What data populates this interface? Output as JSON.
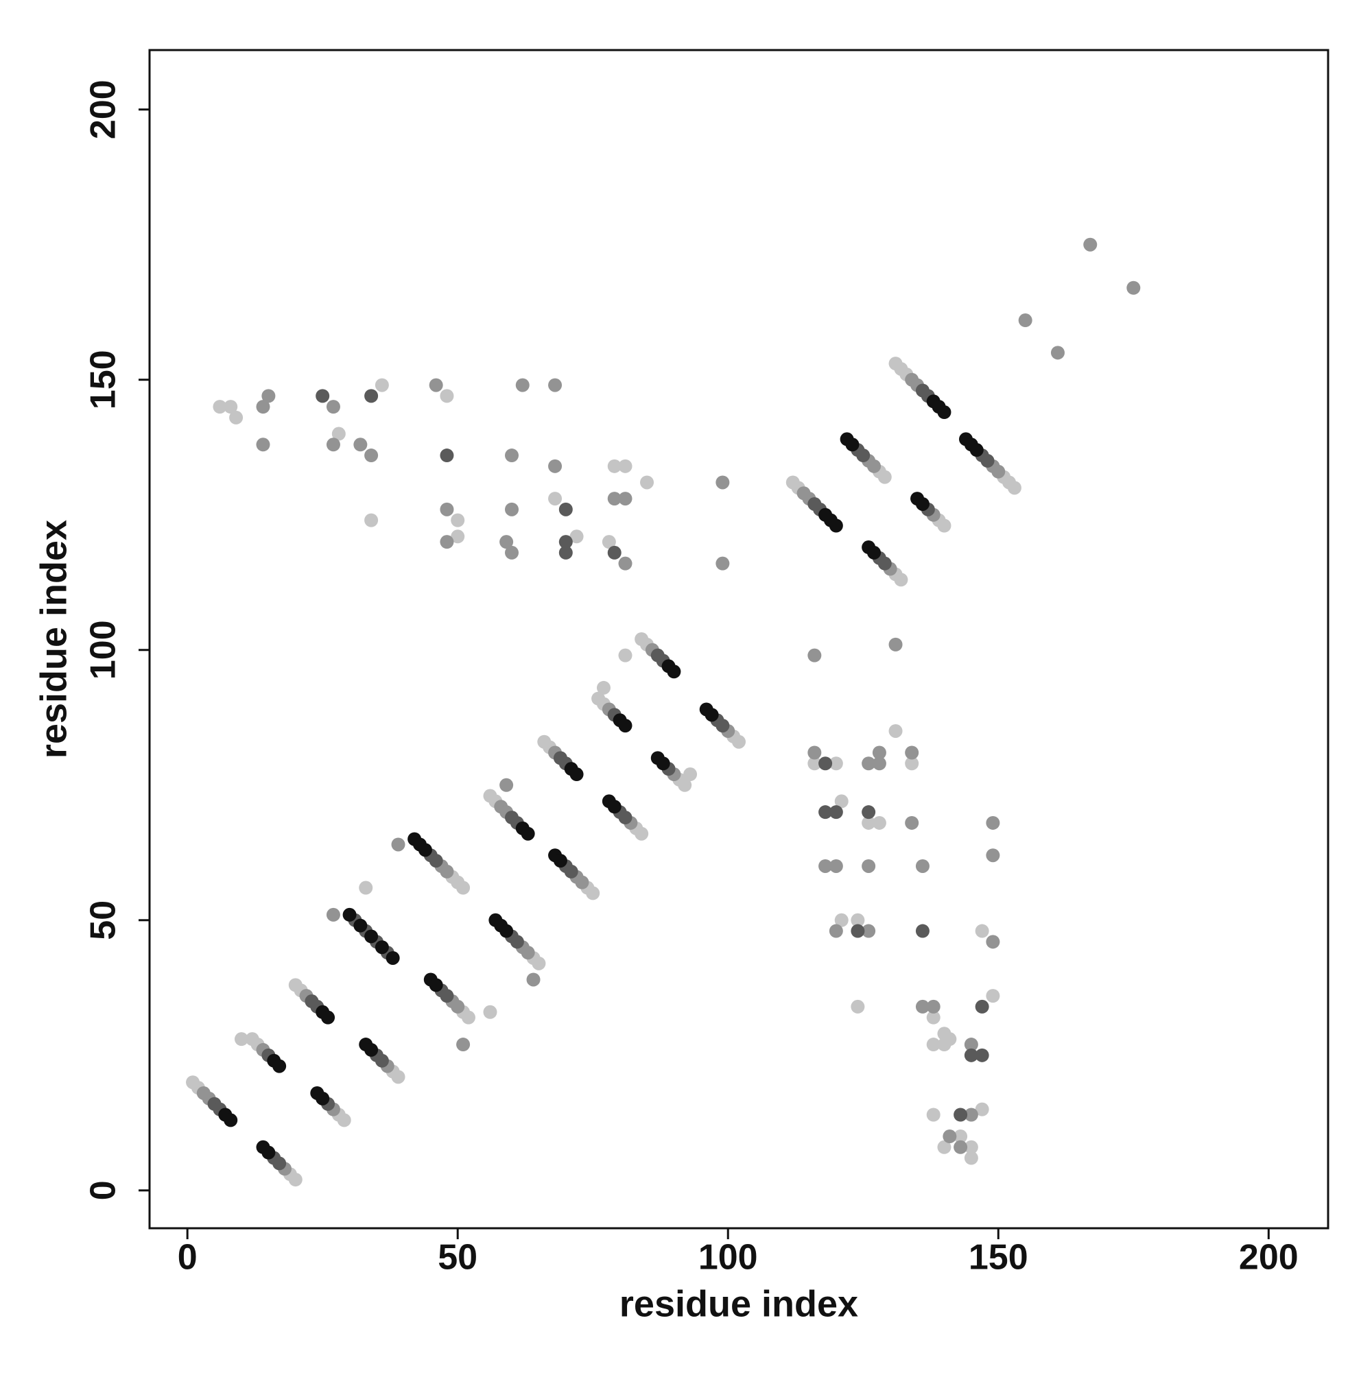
{
  "chart_data": {
    "type": "scatter",
    "xlabel": "residue index",
    "ylabel": "residue index",
    "xlim": [
      -7,
      211
    ],
    "ylim": [
      -7,
      211
    ],
    "xticks": [
      0,
      50,
      100,
      150,
      200
    ],
    "yticks": [
      0,
      50,
      100,
      150,
      200
    ],
    "series": [
      {
        "color": "#c4c4c4",
        "x": [
          1,
          2,
          12,
          13,
          10,
          19,
          20,
          20,
          21,
          28,
          29,
          38,
          39,
          49,
          50,
          51,
          51,
          52,
          56,
          57,
          64,
          65,
          66,
          67,
          74,
          75,
          76,
          77,
          83,
          84,
          84,
          85,
          91,
          92,
          101,
          102,
          112,
          113,
          128,
          129,
          131,
          132,
          131,
          132,
          133,
          139,
          140,
          151,
          152,
          153,
          6,
          8,
          9,
          28,
          36,
          34,
          48,
          50,
          50,
          68,
          72,
          79,
          81,
          78,
          85,
          81,
          116,
          120,
          121,
          121,
          124,
          124,
          126,
          128,
          131,
          134,
          138,
          138,
          138,
          140,
          140,
          141,
          140,
          143,
          145,
          145,
          147,
          147,
          149,
          56,
          33,
          93,
          77
        ],
        "y": [
          20,
          19,
          28,
          27,
          28,
          3,
          2,
          38,
          37,
          14,
          13,
          22,
          21,
          58,
          57,
          56,
          33,
          32,
          73,
          72,
          43,
          42,
          83,
          82,
          56,
          55,
          91,
          90,
          67,
          66,
          102,
          101,
          76,
          75,
          84,
          83,
          131,
          130,
          133,
          132,
          114,
          113,
          153,
          152,
          151,
          124,
          123,
          132,
          131,
          130,
          145,
          145,
          143,
          140,
          149,
          124,
          147,
          124,
          121,
          128,
          121,
          134,
          134,
          120,
          131,
          99,
          79,
          79,
          72,
          50,
          50,
          34,
          68,
          68,
          85,
          79,
          32,
          27,
          14,
          29,
          27,
          28,
          8,
          10,
          8,
          6,
          48,
          15,
          36,
          33,
          56,
          77,
          93
        ]
      },
      {
        "color": "#939393",
        "x": [
          3,
          4,
          14,
          18,
          22,
          27,
          37,
          47,
          48,
          49,
          50,
          58,
          59,
          62,
          63,
          68,
          72,
          73,
          78,
          82,
          86,
          90,
          100,
          114,
          115,
          126,
          127,
          130,
          134,
          135,
          138,
          149,
          150,
          14,
          15,
          14,
          27,
          27,
          32,
          34,
          46,
          48,
          48,
          62,
          60,
          60,
          59,
          60,
          68,
          68,
          79,
          81,
          81,
          99,
          99,
          167,
          175,
          155,
          161,
          131,
          116,
          116,
          118,
          120,
          120,
          126,
          126,
          128,
          128,
          126,
          134,
          134,
          136,
          136,
          138,
          141,
          143,
          145,
          145,
          149,
          149,
          149,
          39,
          27,
          64,
          59,
          51
        ],
        "y": [
          18,
          17,
          26,
          4,
          36,
          15,
          23,
          60,
          59,
          35,
          34,
          71,
          70,
          45,
          44,
          81,
          58,
          57,
          89,
          68,
          100,
          77,
          85,
          129,
          128,
          135,
          134,
          115,
          150,
          149,
          125,
          134,
          133,
          145,
          147,
          138,
          145,
          138,
          138,
          136,
          149,
          126,
          120,
          149,
          136,
          126,
          120,
          118,
          149,
          134,
          128,
          128,
          116,
          131,
          116,
          175,
          167,
          161,
          155,
          101,
          99,
          81,
          60,
          60,
          48,
          48,
          79,
          81,
          79,
          60,
          81,
          68,
          60,
          34,
          34,
          10,
          8,
          14,
          27,
          68,
          62,
          46,
          64,
          51,
          39,
          75,
          27
        ]
      },
      {
        "color": "#5a5a5a",
        "x": [
          5,
          6,
          15,
          16,
          17,
          23,
          24,
          26,
          31,
          33,
          35,
          37,
          35,
          36,
          45,
          46,
          47,
          48,
          60,
          61,
          60,
          61,
          69,
          70,
          70,
          71,
          79,
          80,
          81,
          87,
          88,
          89,
          98,
          99,
          116,
          117,
          124,
          125,
          128,
          129,
          136,
          137,
          137,
          147,
          148,
          25,
          34,
          48,
          70,
          70,
          70,
          79,
          118,
          118,
          120,
          124,
          126,
          136,
          143,
          145,
          147,
          147
        ],
        "y": [
          16,
          15,
          25,
          6,
          5,
          35,
          34,
          16,
          50,
          48,
          46,
          44,
          25,
          24,
          62,
          61,
          37,
          36,
          69,
          68,
          47,
          46,
          80,
          79,
          60,
          59,
          88,
          70,
          69,
          99,
          98,
          78,
          87,
          86,
          127,
          126,
          137,
          136,
          117,
          116,
          148,
          147,
          126,
          136,
          135,
          147,
          147,
          136,
          126,
          120,
          118,
          118,
          79,
          70,
          70,
          48,
          70,
          48,
          14,
          25,
          25,
          34
        ]
      },
      {
        "color": "#111111",
        "x": [
          7,
          8,
          16,
          17,
          14,
          15,
          25,
          26,
          24,
          25,
          30,
          32,
          34,
          36,
          38,
          33,
          34,
          42,
          43,
          44,
          45,
          46,
          62,
          63,
          57,
          58,
          59,
          71,
          72,
          68,
          69,
          80,
          81,
          78,
          79,
          89,
          90,
          87,
          88,
          96,
          97,
          118,
          119,
          120,
          122,
          123,
          126,
          127,
          138,
          139,
          140,
          135,
          136,
          144,
          145,
          146
        ],
        "y": [
          14,
          13,
          24,
          23,
          8,
          7,
          33,
          32,
          18,
          17,
          51,
          49,
          47,
          45,
          43,
          27,
          26,
          65,
          64,
          63,
          39,
          38,
          67,
          66,
          50,
          49,
          48,
          78,
          77,
          62,
          61,
          87,
          86,
          72,
          71,
          97,
          96,
          80,
          79,
          89,
          88,
          125,
          124,
          123,
          139,
          138,
          119,
          118,
          146,
          145,
          144,
          128,
          127,
          139,
          138,
          137
        ]
      }
    ]
  }
}
